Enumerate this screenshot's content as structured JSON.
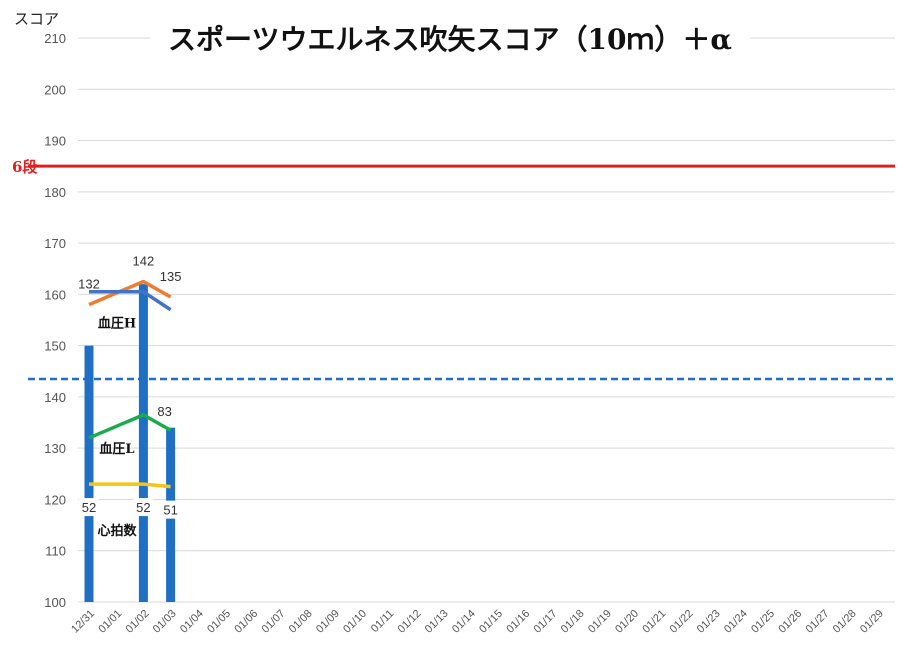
{
  "chart_data": {
    "type": "bar",
    "title": "スポーツウエルネス吹矢スコア（10ｍ）＋α",
    "ylabel": "スコア",
    "ylim": [
      100,
      210
    ],
    "yticks": [
      100,
      110,
      120,
      130,
      140,
      150,
      160,
      170,
      180,
      190,
      200,
      210
    ],
    "grid": true,
    "categories": [
      "12/31",
      "01/01",
      "01/02",
      "01/03",
      "01/04",
      "01/05",
      "01/06",
      "01/07",
      "01/08",
      "01/09",
      "01/10",
      "01/11",
      "01/12",
      "01/13",
      "01/14",
      "01/15",
      "01/16",
      "01/17",
      "01/18",
      "01/19",
      "01/20",
      "01/21",
      "01/22",
      "01/23",
      "01/24",
      "01/25",
      "01/26",
      "01/27",
      "01/28",
      "01/29"
    ],
    "bars": {
      "color": "#1f6fc4",
      "points": [
        {
          "category": "12/31",
          "value": 150
        },
        {
          "category": "01/02",
          "value": 162
        },
        {
          "category": "01/03",
          "value": 134
        }
      ]
    },
    "reference_lines": [
      {
        "label": "6段",
        "value": 185,
        "color": "#e02020",
        "style": "solid"
      },
      {
        "label": "",
        "value": 143.5,
        "color": "#1f6fc4",
        "style": "dashed"
      }
    ],
    "series": [
      {
        "name": "血圧H",
        "color": "#ed7d31",
        "points": [
          {
            "category": "12/31",
            "value": 158
          },
          {
            "category": "01/02",
            "value": 162.5
          },
          {
            "category": "01/03",
            "value": 159.5
          }
        ],
        "labels": [
          {
            "category": "12/31",
            "text": "132"
          },
          {
            "category": "01/02",
            "text": "142"
          },
          {
            "category": "01/03",
            "text": "135"
          }
        ]
      },
      {
        "name": "",
        "color": "#4472c4",
        "points": [
          {
            "category": "12/31",
            "value": 160.5
          },
          {
            "category": "01/02",
            "value": 160.5
          },
          {
            "category": "01/03",
            "value": 157
          }
        ],
        "labels": []
      },
      {
        "name": "血圧L",
        "color": "#1aab4f",
        "points": [
          {
            "category": "12/31",
            "value": 132
          },
          {
            "category": "01/02",
            "value": 136.5
          },
          {
            "category": "01/03",
            "value": 133.5
          }
        ],
        "labels": [
          {
            "category": "01/03",
            "text": "83"
          }
        ]
      },
      {
        "name": "心拍数",
        "color": "#f5c518",
        "points": [
          {
            "category": "12/31",
            "value": 123
          },
          {
            "category": "01/02",
            "value": 123
          },
          {
            "category": "01/03",
            "value": 122.5
          }
        ],
        "labels": [
          {
            "category": "12/31",
            "text": "52"
          },
          {
            "category": "01/02",
            "text": "52"
          },
          {
            "category": "01/03",
            "text": "51"
          }
        ]
      }
    ]
  }
}
